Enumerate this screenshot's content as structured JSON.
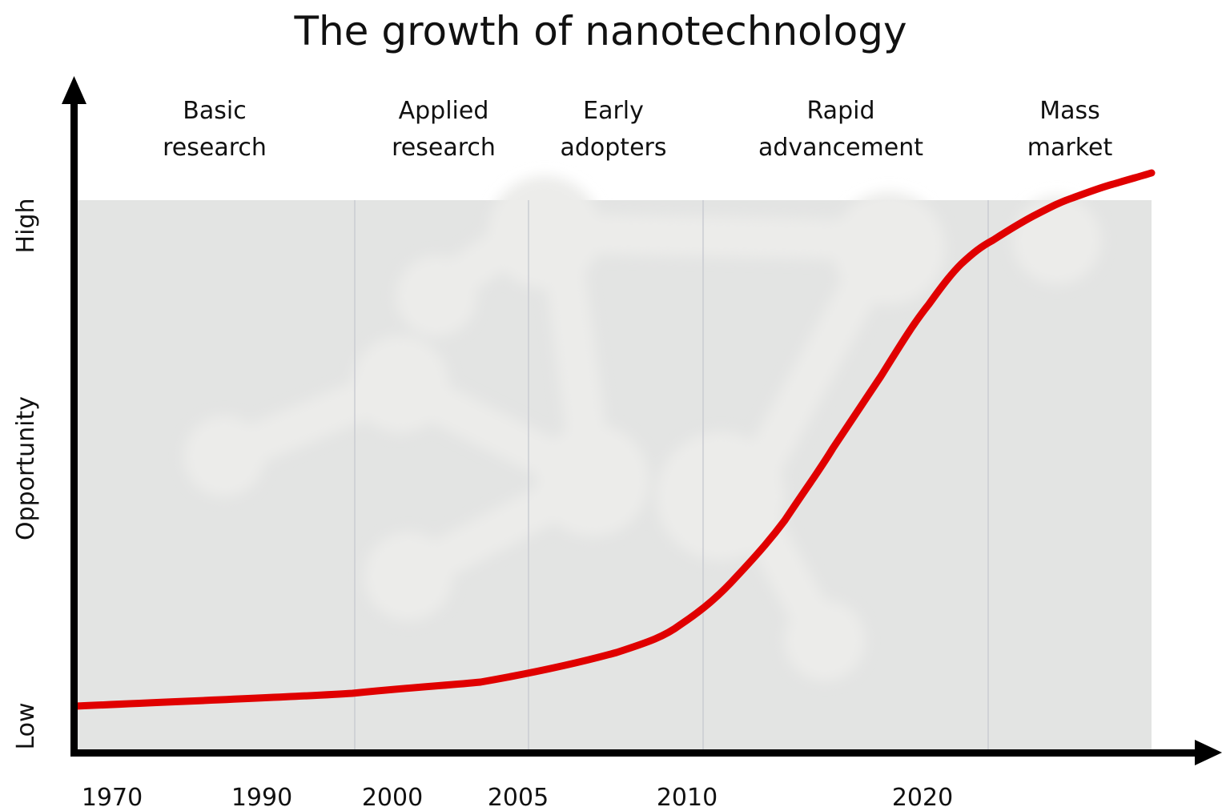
{
  "title": "The growth of nanotechnology",
  "y_axis": {
    "high": "High",
    "label": "Opportunity",
    "low": "Low"
  },
  "phases": [
    [
      "Basic",
      "research"
    ],
    [
      "Applied",
      "research"
    ],
    [
      "Early",
      "adopters"
    ],
    [
      "Rapid",
      "advancement"
    ],
    [
      "Mass",
      "market"
    ]
  ],
  "x_labels": [
    "1970",
    "1990",
    "2000",
    "2005",
    "2010",
    "2020"
  ]
}
